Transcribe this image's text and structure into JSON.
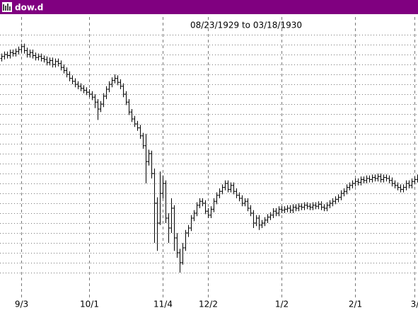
{
  "window_title": "dow.d",
  "chart_data": {
    "type": "ohlc",
    "title": "08/23/1929 to 03/18/1930",
    "categories": [
      null,
      null,
      null,
      null,
      null,
      null,
      null,
      "9/3",
      null,
      null,
      null,
      null,
      null,
      null,
      null,
      null,
      null,
      null,
      null,
      null,
      null,
      null,
      null,
      null,
      null,
      null,
      null,
      null,
      null,
      null,
      null,
      "10/1",
      null,
      null,
      null,
      null,
      null,
      null,
      null,
      null,
      null,
      null,
      null,
      null,
      null,
      null,
      null,
      null,
      null,
      null,
      null,
      null,
      null,
      null,
      null,
      null,
      null,
      "11/4",
      null,
      null,
      null,
      null,
      null,
      null,
      null,
      null,
      null,
      null,
      null,
      null,
      null,
      null,
      null,
      "12/2",
      null,
      null,
      null,
      null,
      null,
      null,
      null,
      null,
      null,
      null,
      null,
      null,
      null,
      null,
      null,
      null,
      null,
      null,
      null,
      null,
      null,
      null,
      null,
      null,
      null,
      "1/2",
      null,
      null,
      null,
      null,
      null,
      null,
      null,
      null,
      null,
      null,
      null,
      null,
      null,
      null,
      null,
      null,
      null,
      null,
      null,
      null,
      null,
      null,
      null,
      null,
      null,
      "2/1",
      null,
      null,
      null,
      null,
      null,
      null,
      null,
      null,
      null,
      null,
      null,
      null,
      null,
      null,
      null,
      null,
      null,
      null,
      null,
      null,
      "3/",
      null
    ],
    "open": [
      366,
      368,
      370,
      369,
      372,
      371,
      373,
      375,
      378,
      374,
      370,
      372,
      369,
      367,
      368,
      366,
      365,
      362,
      364,
      360,
      363,
      361,
      357,
      354,
      350,
      346,
      343,
      340,
      338,
      336,
      334,
      332,
      330,
      327,
      322,
      315,
      320,
      328,
      335,
      340,
      344,
      346,
      342,
      338,
      330,
      322,
      312,
      305,
      300,
      296,
      288,
      278,
      262,
      270,
      250,
      220,
      200,
      230,
      240,
      205,
      195,
      215,
      185,
      170,
      160,
      175,
      190,
      195,
      205,
      210,
      218,
      222,
      220,
      212,
      208,
      214,
      222,
      228,
      232,
      236,
      240,
      234,
      238,
      232,
      228,
      225,
      220,
      222,
      215,
      210,
      200,
      205,
      198,
      200,
      203,
      206,
      208,
      212,
      210,
      214,
      213,
      214,
      215,
      213,
      216,
      215,
      217,
      216,
      218,
      217,
      216,
      218,
      217,
      219,
      216,
      215,
      218,
      220,
      222,
      224,
      226,
      230,
      232,
      236,
      238,
      240,
      242,
      241,
      244,
      243,
      245,
      244,
      246,
      245,
      247,
      244,
      246,
      245,
      243,
      240,
      238,
      236,
      234,
      236,
      240,
      238,
      242,
      244
    ],
    "high": [
      371,
      373,
      373,
      375,
      375,
      376,
      378,
      381,
      381,
      377,
      375,
      375,
      372,
      371,
      371,
      369,
      368,
      367,
      367,
      366,
      366,
      364,
      360,
      357,
      353,
      349,
      346,
      343,
      341,
      339,
      337,
      335,
      333,
      330,
      325,
      323,
      331,
      338,
      343,
      347,
      350,
      349,
      345,
      341,
      333,
      325,
      315,
      308,
      303,
      299,
      291,
      290,
      274,
      273,
      255,
      226,
      252,
      248,
      243,
      210,
      225,
      218,
      190,
      174,
      180,
      193,
      198,
      208,
      213,
      221,
      225,
      225,
      223,
      215,
      217,
      225,
      231,
      235,
      239,
      243,
      243,
      241,
      241,
      235,
      231,
      228,
      225,
      225,
      218,
      213,
      208,
      208,
      203,
      206,
      209,
      211,
      215,
      215,
      217,
      217,
      217,
      218,
      218,
      219,
      219,
      220,
      220,
      221,
      221,
      220,
      221,
      221,
      222,
      222,
      219,
      221,
      223,
      225,
      227,
      229,
      233,
      235,
      239,
      241,
      243,
      245,
      245,
      247,
      247,
      248,
      248,
      249,
      249,
      250,
      250,
      249,
      249,
      248,
      246,
      243,
      241,
      239,
      239,
      243,
      243,
      245,
      247,
      249
    ],
    "low": [
      363,
      365,
      366,
      366,
      368,
      368,
      370,
      372,
      371,
      367,
      367,
      366,
      364,
      364,
      363,
      362,
      359,
      359,
      357,
      357,
      358,
      354,
      351,
      347,
      343,
      340,
      337,
      335,
      333,
      331,
      329,
      327,
      324,
      316,
      304,
      312,
      317,
      325,
      332,
      337,
      341,
      339,
      335,
      327,
      319,
      309,
      302,
      297,
      293,
      285,
      275,
      240,
      258,
      245,
      180,
      172,
      198,
      225,
      200,
      180,
      190,
      172,
      165,
      150,
      158,
      172,
      186,
      192,
      202,
      207,
      215,
      217,
      209,
      205,
      205,
      211,
      219,
      225,
      229,
      233,
      231,
      231,
      229,
      225,
      222,
      217,
      217,
      212,
      207,
      195,
      197,
      193,
      195,
      197,
      200,
      203,
      205,
      207,
      207,
      210,
      210,
      211,
      210,
      210,
      212,
      212,
      213,
      213,
      214,
      213,
      213,
      214,
      214,
      213,
      212,
      212,
      215,
      217,
      219,
      221,
      223,
      227,
      229,
      233,
      235,
      237,
      238,
      238,
      240,
      240,
      241,
      241,
      242,
      242,
      241,
      241,
      242,
      240,
      237,
      235,
      233,
      231,
      231,
      233,
      235,
      235,
      239,
      241
    ],
    "close": [
      368,
      370,
      369,
      372,
      371,
      373,
      375,
      378,
      374,
      370,
      372,
      369,
      367,
      368,
      366,
      365,
      362,
      364,
      360,
      363,
      361,
      357,
      354,
      350,
      346,
      343,
      340,
      338,
      336,
      334,
      332,
      330,
      327,
      322,
      315,
      320,
      328,
      335,
      340,
      344,
      346,
      342,
      338,
      330,
      322,
      312,
      305,
      300,
      296,
      288,
      278,
      262,
      270,
      250,
      220,
      200,
      230,
      240,
      205,
      195,
      215,
      185,
      170,
      160,
      175,
      190,
      195,
      205,
      210,
      218,
      222,
      220,
      212,
      208,
      214,
      222,
      228,
      232,
      236,
      240,
      234,
      238,
      232,
      228,
      225,
      220,
      222,
      215,
      210,
      200,
      205,
      198,
      200,
      203,
      206,
      208,
      212,
      210,
      214,
      213,
      214,
      215,
      213,
      216,
      215,
      217,
      216,
      218,
      217,
      216,
      218,
      217,
      219,
      216,
      215,
      218,
      220,
      222,
      224,
      226,
      230,
      232,
      236,
      238,
      240,
      242,
      241,
      244,
      243,
      245,
      244,
      246,
      245,
      247,
      244,
      246,
      245,
      243,
      240,
      238,
      236,
      234,
      236,
      240,
      238,
      242,
      244,
      246
    ],
    "color": "#000000",
    "ylim": [
      140,
      400
    ],
    "yticks": [
      150,
      160,
      170,
      180,
      190,
      200,
      210,
      220,
      230,
      240,
      250,
      260,
      270,
      280,
      290,
      300,
      310,
      320,
      330,
      340,
      350,
      360,
      370,
      380,
      390
    ],
    "grid": true
  }
}
